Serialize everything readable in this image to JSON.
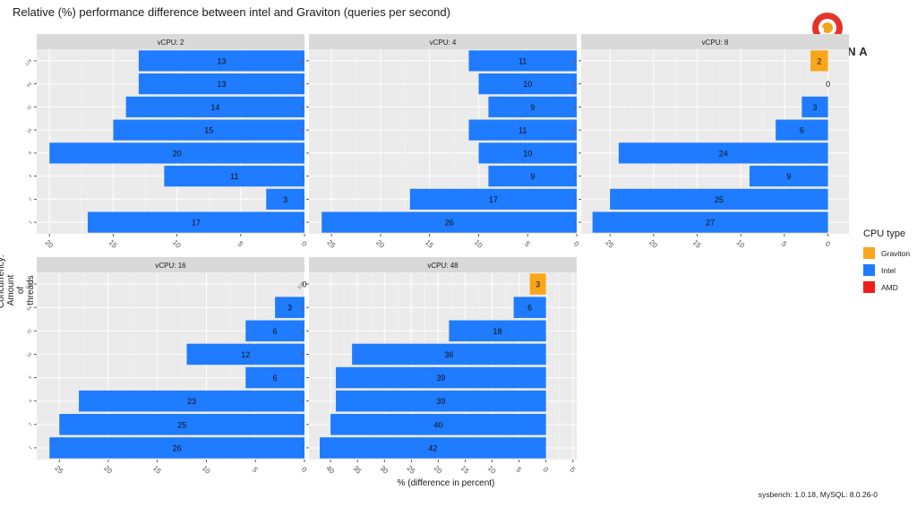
{
  "title": "Relative (%) performance difference between intel and Graviton (queries per second)",
  "footer": "sysbench: 1.0.18, MySQL: 8.0.26-0",
  "logo": {
    "text": "PERCONA"
  },
  "colors": {
    "Graviton": "#FAA61A",
    "Intel": "#1F7BFF",
    "AMD": "#F21B1B"
  },
  "legend": {
    "title": "CPU type",
    "items": [
      {
        "label": "Graviton",
        "color": "#FAA61A"
      },
      {
        "label": "Intel",
        "color": "#1F7BFF"
      },
      {
        "label": "AMD",
        "color": "#F21B1B"
      }
    ]
  },
  "chart_data": {
    "type": "bar",
    "orientation": "horizontal",
    "title": "Relative (%) performance difference between intel and Graviton (queries per second)",
    "xlabel": "% (difference in percent)",
    "ylabel": "Concurrency: Amount of threads",
    "categories": [
      "1",
      "2",
      "4",
      "8",
      "16",
      "32",
      "64",
      "128"
    ],
    "facets": [
      {
        "label": "vCPU: 2",
        "xlim": [
          21,
          0
        ],
        "ticks": [
          20,
          15,
          10,
          5,
          0
        ],
        "bars": [
          {
            "v": 17,
            "t": "Intel"
          },
          {
            "v": 3,
            "t": "Intel"
          },
          {
            "v": 11,
            "t": "Intel"
          },
          {
            "v": 20,
            "t": "Intel"
          },
          {
            "v": 15,
            "t": "Intel"
          },
          {
            "v": 14,
            "t": "Intel"
          },
          {
            "v": 13,
            "t": "Intel"
          },
          {
            "v": 13,
            "t": "Intel"
          }
        ]
      },
      {
        "label": "vCPU: 4",
        "xlim": [
          27.3,
          0
        ],
        "ticks": [
          25,
          20,
          15,
          10,
          5,
          0
        ],
        "bars": [
          {
            "v": 26,
            "t": "Intel"
          },
          {
            "v": 17,
            "t": "Intel"
          },
          {
            "v": 9,
            "t": "Intel"
          },
          {
            "v": 10,
            "t": "Intel"
          },
          {
            "v": 11,
            "t": "Intel"
          },
          {
            "v": 9,
            "t": "Intel"
          },
          {
            "v": 10,
            "t": "Intel"
          },
          {
            "v": 11,
            "t": "Intel"
          }
        ]
      },
      {
        "label": "vCPU: 8",
        "xlim": [
          28.3,
          -2.4
        ],
        "ticks": [
          25,
          20,
          15,
          10,
          5,
          0
        ],
        "bars": [
          {
            "v": 27,
            "t": "Intel"
          },
          {
            "v": 25,
            "t": "Intel"
          },
          {
            "v": 9,
            "t": "Intel"
          },
          {
            "v": 24,
            "t": "Intel"
          },
          {
            "v": 6,
            "t": "Intel"
          },
          {
            "v": 3,
            "t": "Intel"
          },
          {
            "v": 0,
            "t": "Intel"
          },
          {
            "v": 2,
            "t": "Graviton"
          }
        ]
      },
      {
        "label": "vCPU: 16",
        "xlim": [
          27.3,
          0
        ],
        "ticks": [
          25,
          20,
          15,
          10,
          5,
          0
        ],
        "bars": [
          {
            "v": 26,
            "t": "Intel"
          },
          {
            "v": 25,
            "t": "Intel"
          },
          {
            "v": 23,
            "t": "Intel"
          },
          {
            "v": 6,
            "t": "Intel"
          },
          {
            "v": 12,
            "t": "Intel"
          },
          {
            "v": 6,
            "t": "Intel"
          },
          {
            "v": 3,
            "t": "Intel"
          },
          {
            "v": 0,
            "t": "Intel"
          }
        ]
      },
      {
        "label": "vCPU: 48",
        "xlim": [
          44,
          -5.7
        ],
        "ticks": [
          40,
          35,
          30,
          25,
          20,
          15,
          10,
          5,
          0,
          -5
        ],
        "tick_labels": [
          "40",
          "35",
          "30",
          "25",
          "20",
          "15",
          "10",
          "5",
          "0",
          "5"
        ],
        "bars": [
          {
            "v": 42,
            "t": "Intel"
          },
          {
            "v": 40,
            "t": "Intel"
          },
          {
            "v": 39,
            "t": "Intel"
          },
          {
            "v": 39,
            "t": "Intel"
          },
          {
            "v": 36,
            "t": "Intel"
          },
          {
            "v": 18,
            "t": "Intel"
          },
          {
            "v": 6,
            "t": "Intel"
          },
          {
            "v": 3,
            "t": "Graviton"
          }
        ]
      }
    ]
  }
}
